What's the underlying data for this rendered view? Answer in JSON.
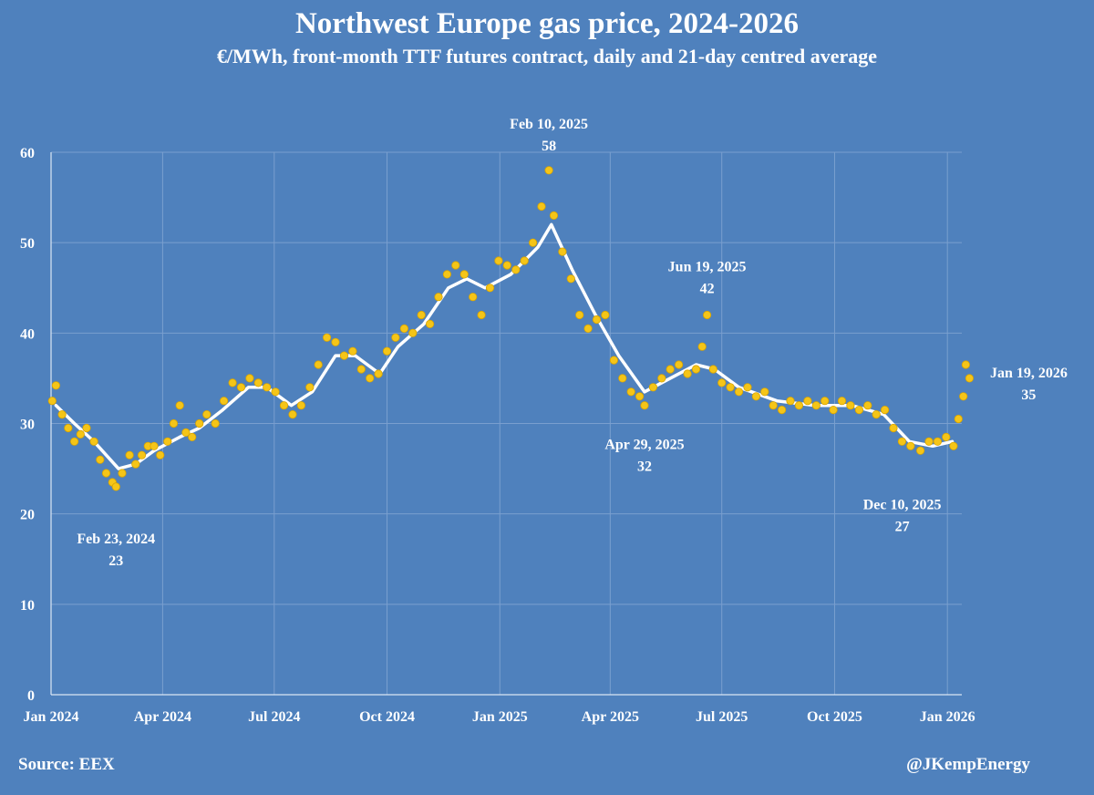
{
  "page": {
    "title": "Northwest Europe gas price, 2024-2026",
    "subtitle": "€/MWh, front-month TTF futures contract, daily and 21-day centred average",
    "source": "Source: EEX",
    "handle": "@JKempEnergy"
  },
  "colors": {
    "background": "#4f81bd",
    "grid": "#7a9fcf",
    "daily_dots": "#f5c518",
    "daily_dot_outline": "#d9a400",
    "average_line": "#ffffff",
    "text": "#ffffff"
  },
  "chart_data": {
    "type": "scatter",
    "x_axis": {
      "type": "date",
      "range": [
        "2024-01-01",
        "2026-01-31"
      ],
      "ticks": [
        {
          "date": "2024-01-01",
          "label": "Jan 2024"
        },
        {
          "date": "2024-04-01",
          "label": "Apr 2024"
        },
        {
          "date": "2024-07-01",
          "label": "Jul 2024"
        },
        {
          "date": "2024-10-01",
          "label": "Oct 2024"
        },
        {
          "date": "2025-01-01",
          "label": "Jan 2025"
        },
        {
          "date": "2025-04-01",
          "label": "Apr 2025"
        },
        {
          "date": "2025-07-01",
          "label": "Jul 2025"
        },
        {
          "date": "2025-10-01",
          "label": "Oct 2025"
        },
        {
          "date": "2026-01-01",
          "label": "Jan 2026"
        }
      ]
    },
    "y_axis": {
      "range": [
        0,
        60
      ],
      "ticks": [
        0,
        10,
        20,
        30,
        40,
        50,
        60
      ],
      "grid": true
    },
    "series": [
      {
        "style": "dots",
        "points": [
          [
            "2024-01-02",
            32.5
          ],
          [
            "2024-01-05",
            34.2
          ],
          [
            "2024-01-10",
            31.0
          ],
          [
            "2024-01-15",
            29.5
          ],
          [
            "2024-01-20",
            28.0
          ],
          [
            "2024-01-25",
            28.8
          ],
          [
            "2024-01-30",
            29.5
          ],
          [
            "2024-02-05",
            28.0
          ],
          [
            "2024-02-10",
            26.0
          ],
          [
            "2024-02-15",
            24.5
          ],
          [
            "2024-02-20",
            23.5
          ],
          [
            "2024-02-23",
            23.0
          ],
          [
            "2024-02-28",
            24.5
          ],
          [
            "2024-03-05",
            26.5
          ],
          [
            "2024-03-10",
            25.5
          ],
          [
            "2024-03-15",
            26.5
          ],
          [
            "2024-03-20",
            27.5
          ],
          [
            "2024-03-25",
            27.5
          ],
          [
            "2024-03-30",
            26.5
          ],
          [
            "2024-04-05",
            28.0
          ],
          [
            "2024-04-10",
            30.0
          ],
          [
            "2024-04-15",
            32.0
          ],
          [
            "2024-04-20",
            29.0
          ],
          [
            "2024-04-25",
            28.5
          ],
          [
            "2024-05-01",
            30.0
          ],
          [
            "2024-05-07",
            31.0
          ],
          [
            "2024-05-14",
            30.0
          ],
          [
            "2024-05-21",
            32.5
          ],
          [
            "2024-05-28",
            34.5
          ],
          [
            "2024-06-04",
            34.0
          ],
          [
            "2024-06-11",
            35.0
          ],
          [
            "2024-06-18",
            34.5
          ],
          [
            "2024-06-25",
            34.0
          ],
          [
            "2024-07-02",
            33.5
          ],
          [
            "2024-07-09",
            32.0
          ],
          [
            "2024-07-16",
            31.0
          ],
          [
            "2024-07-23",
            32.0
          ],
          [
            "2024-07-30",
            34.0
          ],
          [
            "2024-08-06",
            36.5
          ],
          [
            "2024-08-13",
            39.5
          ],
          [
            "2024-08-20",
            39.0
          ],
          [
            "2024-08-27",
            37.5
          ],
          [
            "2024-09-03",
            38.0
          ],
          [
            "2024-09-10",
            36.0
          ],
          [
            "2024-09-17",
            35.0
          ],
          [
            "2024-09-24",
            35.5
          ],
          [
            "2024-10-01",
            38.0
          ],
          [
            "2024-10-08",
            39.5
          ],
          [
            "2024-10-15",
            40.5
          ],
          [
            "2024-10-22",
            40.0
          ],
          [
            "2024-10-29",
            42.0
          ],
          [
            "2024-11-05",
            41.0
          ],
          [
            "2024-11-12",
            44.0
          ],
          [
            "2024-11-19",
            46.5
          ],
          [
            "2024-11-26",
            47.5
          ],
          [
            "2024-12-03",
            46.5
          ],
          [
            "2024-12-10",
            44.0
          ],
          [
            "2024-12-17",
            42.0
          ],
          [
            "2024-12-24",
            45.0
          ],
          [
            "2024-12-31",
            48.0
          ],
          [
            "2025-01-07",
            47.5
          ],
          [
            "2025-01-14",
            47.0
          ],
          [
            "2025-01-21",
            48.0
          ],
          [
            "2025-01-28",
            50.0
          ],
          [
            "2025-02-04",
            54.0
          ],
          [
            "2025-02-10",
            58.0
          ],
          [
            "2025-02-14",
            53.0
          ],
          [
            "2025-02-21",
            49.0
          ],
          [
            "2025-02-28",
            46.0
          ],
          [
            "2025-03-07",
            42.0
          ],
          [
            "2025-03-14",
            40.5
          ],
          [
            "2025-03-21",
            41.5
          ],
          [
            "2025-03-28",
            42.0
          ],
          [
            "2025-04-04",
            37.0
          ],
          [
            "2025-04-11",
            35.0
          ],
          [
            "2025-04-18",
            33.5
          ],
          [
            "2025-04-25",
            33.0
          ],
          [
            "2025-04-29",
            32.0
          ],
          [
            "2025-05-06",
            34.0
          ],
          [
            "2025-05-13",
            35.0
          ],
          [
            "2025-05-20",
            36.0
          ],
          [
            "2025-05-27",
            36.5
          ],
          [
            "2025-06-03",
            35.5
          ],
          [
            "2025-06-10",
            36.0
          ],
          [
            "2025-06-15",
            38.5
          ],
          [
            "2025-06-19",
            42.0
          ],
          [
            "2025-06-24",
            36.0
          ],
          [
            "2025-07-01",
            34.5
          ],
          [
            "2025-07-08",
            34.0
          ],
          [
            "2025-07-15",
            33.5
          ],
          [
            "2025-07-22",
            34.0
          ],
          [
            "2025-07-29",
            33.0
          ],
          [
            "2025-08-05",
            33.5
          ],
          [
            "2025-08-12",
            32.0
          ],
          [
            "2025-08-19",
            31.5
          ],
          [
            "2025-08-26",
            32.5
          ],
          [
            "2025-09-02",
            32.0
          ],
          [
            "2025-09-09",
            32.5
          ],
          [
            "2025-09-16",
            32.0
          ],
          [
            "2025-09-23",
            32.5
          ],
          [
            "2025-09-30",
            31.5
          ],
          [
            "2025-10-07",
            32.5
          ],
          [
            "2025-10-14",
            32.0
          ],
          [
            "2025-10-21",
            31.5
          ],
          [
            "2025-10-28",
            32.0
          ],
          [
            "2025-11-04",
            31.0
          ],
          [
            "2025-11-11",
            31.5
          ],
          [
            "2025-11-18",
            29.5
          ],
          [
            "2025-11-25",
            28.0
          ],
          [
            "2025-12-02",
            27.5
          ],
          [
            "2025-12-10",
            27.0
          ],
          [
            "2025-12-17",
            28.0
          ],
          [
            "2025-12-24",
            28.0
          ],
          [
            "2025-12-31",
            28.5
          ],
          [
            "2026-01-06",
            27.5
          ],
          [
            "2026-01-10",
            30.5
          ],
          [
            "2026-01-14",
            33.0
          ],
          [
            "2026-01-16",
            36.5
          ],
          [
            "2026-01-19",
            35.0
          ]
        ]
      },
      {
        "style": "line",
        "points": [
          [
            "2024-01-05",
            32.0
          ],
          [
            "2024-01-20",
            30.0
          ],
          [
            "2024-02-05",
            28.0
          ],
          [
            "2024-02-25",
            25.0
          ],
          [
            "2024-03-10",
            25.5
          ],
          [
            "2024-03-25",
            27.0
          ],
          [
            "2024-04-15",
            28.5
          ],
          [
            "2024-05-01",
            29.5
          ],
          [
            "2024-05-20",
            31.5
          ],
          [
            "2024-06-10",
            34.0
          ],
          [
            "2024-06-25",
            34.0
          ],
          [
            "2024-07-15",
            32.0
          ],
          [
            "2024-08-01",
            33.5
          ],
          [
            "2024-08-20",
            37.5
          ],
          [
            "2024-09-05",
            37.5
          ],
          [
            "2024-09-25",
            35.5
          ],
          [
            "2024-10-10",
            38.5
          ],
          [
            "2024-10-31",
            41.0
          ],
          [
            "2024-11-20",
            45.0
          ],
          [
            "2024-12-05",
            46.0
          ],
          [
            "2024-12-20",
            45.0
          ],
          [
            "2025-01-10",
            46.5
          ],
          [
            "2025-02-01",
            49.5
          ],
          [
            "2025-02-12",
            52.0
          ],
          [
            "2025-03-01",
            47.0
          ],
          [
            "2025-03-20",
            42.0
          ],
          [
            "2025-04-08",
            37.5
          ],
          [
            "2025-04-29",
            33.5
          ],
          [
            "2025-05-20",
            35.0
          ],
          [
            "2025-06-10",
            36.5
          ],
          [
            "2025-06-25",
            36.0
          ],
          [
            "2025-07-15",
            34.0
          ],
          [
            "2025-08-15",
            32.5
          ],
          [
            "2025-09-15",
            32.0
          ],
          [
            "2025-10-15",
            32.0
          ],
          [
            "2025-11-10",
            31.0
          ],
          [
            "2025-12-01",
            28.0
          ],
          [
            "2025-12-20",
            27.5
          ],
          [
            "2026-01-05",
            28.0
          ]
        ]
      }
    ],
    "annotations": [
      {
        "date_label": "Feb 23, 2024",
        "value_label": "23",
        "date": "2024-02-23",
        "value": 23
      },
      {
        "date_label": "Feb 10, 2025",
        "value_label": "58",
        "date": "2025-02-10",
        "value": 58
      },
      {
        "date_label": "Jun 19, 2025",
        "value_label": "42",
        "date": "2025-06-19",
        "value": 42
      },
      {
        "date_label": "Apr 29, 2025",
        "value_label": "32",
        "date": "2025-04-29",
        "value": 32
      },
      {
        "date_label": "Dec 10, 2025",
        "value_label": "27",
        "date": "2025-12-10",
        "value": 27
      },
      {
        "date_label": "Jan 19, 2026",
        "value_label": "35",
        "date": "2026-01-19",
        "value": 35
      }
    ]
  }
}
